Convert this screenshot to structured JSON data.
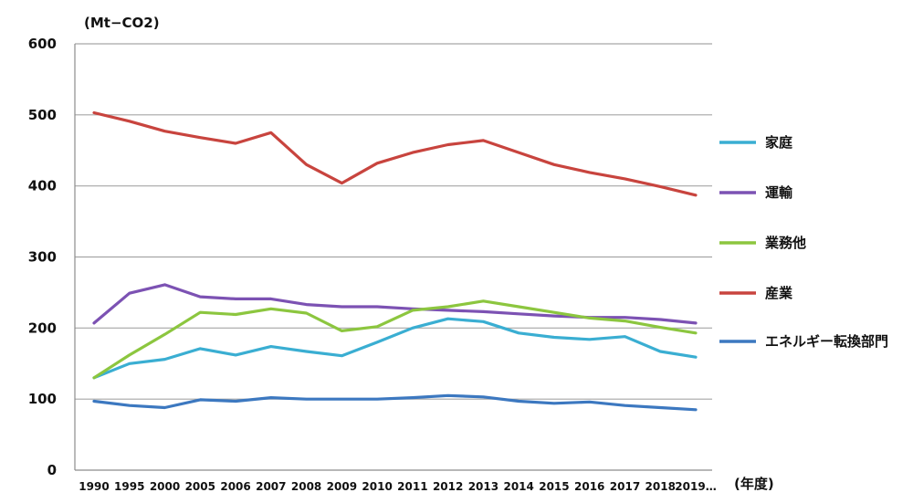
{
  "chart_data": {
    "type": "line",
    "y_unit_label": "(Mt−CO2)",
    "x_unit_label": "(年度)",
    "x": [
      "1990",
      "1995",
      "2000",
      "2005",
      "2006",
      "2007",
      "2008",
      "2009",
      "2010",
      "2011",
      "2012",
      "2013",
      "2014",
      "2015",
      "2016",
      "2017",
      "2018",
      "2019…"
    ],
    "ylim": [
      0,
      600
    ],
    "yticks": [
      "0",
      "100",
      "200",
      "300",
      "400",
      "500",
      "600"
    ],
    "grid": true,
    "legend_position": "right",
    "series": [
      {
        "name": "家庭",
        "color": "#3aaed2",
        "values": [
          130,
          150,
          156,
          171,
          162,
          174,
          167,
          161,
          180,
          200,
          213,
          209,
          193,
          187,
          184,
          188,
          167,
          159
        ]
      },
      {
        "name": "運輸",
        "color": "#7c52b3",
        "values": [
          207,
          249,
          261,
          244,
          241,
          241,
          233,
          230,
          230,
          227,
          225,
          223,
          220,
          217,
          215,
          215,
          212,
          207
        ]
      },
      {
        "name": "業務他",
        "color": "#8cc63f",
        "values": [
          130,
          162,
          191,
          222,
          219,
          227,
          221,
          196,
          202,
          225,
          230,
          238,
          230,
          222,
          214,
          210,
          201,
          193
        ]
      },
      {
        "name": "産業",
        "color": "#c8443e",
        "values": [
          503,
          491,
          477,
          468,
          460,
          475,
          430,
          404,
          432,
          447,
          458,
          464,
          447,
          430,
          419,
          410,
          399,
          387
        ]
      },
      {
        "name": "エネルギー転換部門",
        "color": "#3c78c0",
        "values": [
          97,
          91,
          88,
          99,
          97,
          102,
          100,
          100,
          100,
          102,
          105,
          103,
          97,
          94,
          96,
          91,
          88,
          85
        ]
      }
    ]
  }
}
